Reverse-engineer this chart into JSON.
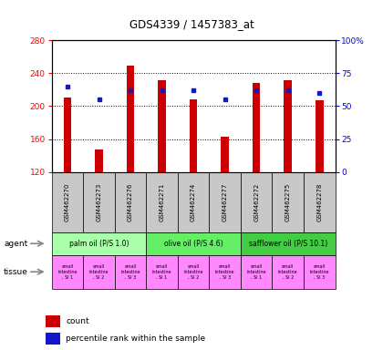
{
  "title": "GDS4339 / 1457383_at",
  "samples": [
    "GSM462270",
    "GSM462273",
    "GSM462276",
    "GSM462271",
    "GSM462274",
    "GSM462277",
    "GSM462272",
    "GSM462275",
    "GSM462278"
  ],
  "counts": [
    210,
    147,
    249,
    232,
    208,
    163,
    228,
    231,
    207
  ],
  "percentile_ranks": [
    65,
    55,
    62,
    62,
    62,
    55,
    62,
    62,
    60
  ],
  "y_min": 120,
  "y_max": 280,
  "y_ticks": [
    120,
    160,
    200,
    240,
    280
  ],
  "y_right_ticks": [
    0,
    25,
    50,
    75,
    100
  ],
  "y_right_labels": [
    "0",
    "25",
    "50",
    "75",
    "100%"
  ],
  "bar_color": "#cc0000",
  "dot_color": "#1515cc",
  "agent_groups": [
    {
      "label": "palm oil (P/S 1.0)",
      "start": 0,
      "end": 3,
      "color": "#aaffaa"
    },
    {
      "label": "olive oil (P/S 4.6)",
      "start": 3,
      "end": 6,
      "color": "#66ee66"
    },
    {
      "label": "safflower oil (P/S 10.1)",
      "start": 6,
      "end": 9,
      "color": "#44cc44"
    }
  ],
  "tissue_labels": [
    "small\nintestine\n, SI 1",
    "small\nintestine\n, SI 2",
    "small\nintestine\n, SI 3",
    "small\nintestine\n, SI 1",
    "small\nintestine\n, SI 2",
    "small\nintestine\n, SI 3",
    "small\nintestine\n, SI 1",
    "small\nintestine\n, SI 2",
    "small\nintestine\n, SI 3"
  ],
  "tissue_color": "#ff88ff",
  "sample_bg_color": "#c8c8c8",
  "bar_width": 0.25
}
